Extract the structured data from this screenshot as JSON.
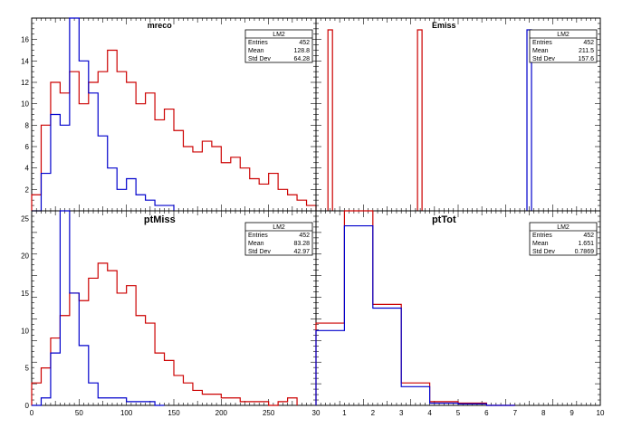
{
  "colors": {
    "series_a": "#cc0000",
    "series_b": "#0000cc",
    "axis": "#000000",
    "background": "#ffffff"
  },
  "chart_data": [
    {
      "type": "histogram",
      "title": "mreco",
      "stats": {
        "name": "LM2",
        "rows": [
          [
            "Entries",
            "452"
          ],
          [
            "Mean",
            "128.8"
          ],
          [
            "Std Dev",
            "64.28"
          ]
        ]
      },
      "xlim": [
        0,
        300
      ],
      "ylim": [
        0,
        18
      ],
      "xticks": [],
      "yticks": [
        2,
        4,
        6,
        8,
        10,
        12,
        14,
        16
      ],
      "series": [
        {
          "name": "red",
          "color": "#cc0000",
          "step_x": [
            0,
            10,
            20,
            30,
            40,
            50,
            60,
            70,
            80,
            90,
            100,
            110,
            120,
            130,
            140,
            150,
            160,
            170,
            180,
            190,
            200,
            210,
            220,
            230,
            240,
            250,
            260,
            270,
            280,
            290,
            300
          ],
          "step_y": [
            1.5,
            8,
            12,
            11,
            13,
            10,
            12,
            13,
            15,
            13,
            12,
            10,
            11,
            8.5,
            9.5,
            7.5,
            6,
            5.5,
            6.5,
            6,
            4.5,
            5,
            4,
            3,
            2.5,
            3.5,
            2,
            1.5,
            1,
            0.5
          ]
        },
        {
          "name": "blue",
          "color": "#0000cc",
          "step_x": [
            0,
            10,
            20,
            30,
            40,
            50,
            60,
            70,
            80,
            90,
            100,
            110,
            120,
            130,
            140,
            150
          ],
          "step_y": [
            0,
            3.5,
            9,
            8,
            18,
            14,
            11,
            7,
            4,
            2,
            3,
            1.5,
            1,
            0.5,
            0.5
          ]
        }
      ]
    },
    {
      "type": "histogram",
      "title": "Emiss",
      "stats": {
        "name": "LM2",
        "rows": [
          [
            "Entries",
            "452"
          ],
          [
            "Mean",
            "211.5"
          ],
          [
            "Std Dev",
            "157.6"
          ]
        ]
      },
      "xlim": [
        0,
        10
      ],
      "ylim": [
        0,
        18
      ],
      "xticks": [],
      "yticks": [],
      "spikes": [
        0.5,
        3.65,
        7.5
      ],
      "series": [
        {
          "name": "red",
          "color": "#cc0000",
          "spike_x": [
            0.5,
            3.65
          ]
        },
        {
          "name": "blue",
          "color": "#0000cc",
          "spike_x": [
            7.5
          ]
        }
      ]
    },
    {
      "type": "histogram",
      "title": "ptMiss",
      "stats": {
        "name": "LM2",
        "rows": [
          [
            "Entries",
            "452"
          ],
          [
            "Mean",
            "83.28"
          ],
          [
            "Std Dev",
            "42.97"
          ]
        ]
      },
      "xlim": [
        0,
        300
      ],
      "ylim": [
        0,
        26
      ],
      "xticks": [
        0,
        50,
        100,
        150,
        200,
        250,
        "30"
      ],
      "yticks": [
        0,
        5,
        10,
        15,
        20,
        25
      ],
      "series": [
        {
          "name": "red",
          "color": "#cc0000",
          "step_x": [
            0,
            10,
            20,
            30,
            40,
            50,
            60,
            70,
            80,
            90,
            100,
            110,
            120,
            130,
            140,
            150,
            160,
            170,
            180,
            190,
            200,
            210,
            220,
            230,
            240,
            250,
            260,
            270,
            280
          ],
          "step_y": [
            3,
            5,
            9,
            12,
            15,
            14,
            17,
            19,
            18,
            15,
            16,
            12,
            11,
            7,
            6,
            4,
            3,
            2,
            1.5,
            1.5,
            1,
            1,
            0.5,
            0.5,
            0.5,
            0,
            0.5,
            1
          ]
        },
        {
          "name": "blue",
          "color": "#0000cc",
          "step_x": [
            0,
            10,
            20,
            30,
            40,
            50,
            60,
            70,
            80,
            90,
            100,
            110,
            120,
            130,
            140
          ],
          "step_y": [
            0,
            1,
            7,
            26,
            15,
            8,
            3,
            1,
            1,
            1,
            0.5,
            0.5,
            0.5,
            0
          ]
        }
      ]
    },
    {
      "type": "histogram",
      "title": "ptTot",
      "stats": {
        "name": "LM2",
        "rows": [
          [
            "Entries",
            "452"
          ],
          [
            "Mean",
            "1.651"
          ],
          [
            "Std Dev",
            "0.7869"
          ]
        ]
      },
      "xlim": [
        0,
        10
      ],
      "ylim": [
        0,
        26
      ],
      "xticks": [
        1,
        2,
        3,
        4,
        5,
        6,
        7,
        8,
        9,
        "10"
      ],
      "yticks": [],
      "series": [
        {
          "name": "red",
          "color": "#cc0000",
          "step_x": [
            0,
            1,
            2,
            3,
            4,
            5,
            6,
            7
          ],
          "step_y": [
            11,
            26,
            13.5,
            3,
            0.5,
            0.3,
            0
          ]
        },
        {
          "name": "blue",
          "color": "#0000cc",
          "step_x": [
            0,
            1,
            2,
            3,
            4,
            5,
            6,
            7
          ],
          "step_y": [
            10,
            24,
            13,
            2.5,
            0.3,
            0.2,
            0
          ]
        }
      ]
    }
  ]
}
